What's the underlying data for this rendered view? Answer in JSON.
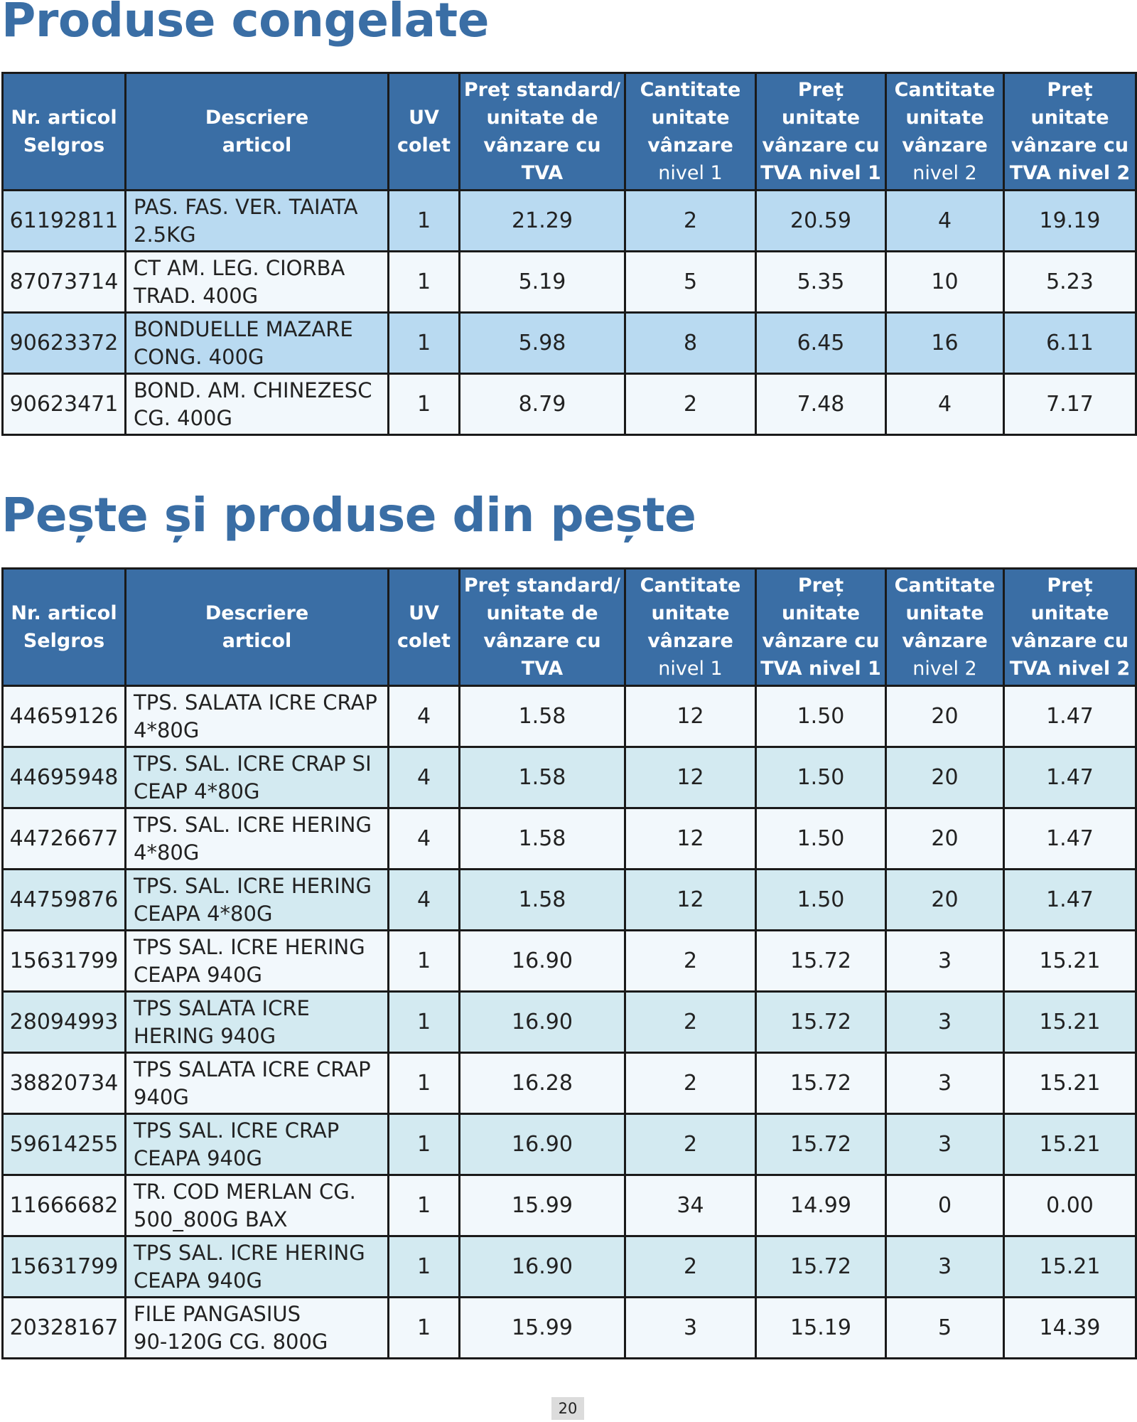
{
  "headers": [
    {
      "line1": "Nr. articol",
      "line2": "Selgros",
      "line3": "",
      "line4": ""
    },
    {
      "line1": "Descriere",
      "line2": "articol",
      "line3": "",
      "line4": ""
    },
    {
      "line1": "UV",
      "line2": "colet",
      "line3": "",
      "line4": ""
    },
    {
      "line1": "Preț standard/",
      "line2": "unitate de",
      "line3": "vânzare cu",
      "line4": "TVA"
    },
    {
      "line1": "Cantitate",
      "line2": "unitate",
      "line3": "vânzare",
      "line4": "nivel 1"
    },
    {
      "line1": "Preț",
      "line2": "unitate",
      "line3": "vânzare cu",
      "line4": "TVA nivel 1"
    },
    {
      "line1": "Cantitate",
      "line2": "unitate",
      "line3": "vânzare",
      "line4": "nivel 2"
    },
    {
      "line1": "Preț",
      "line2": "unitate",
      "line3": "vânzare cu",
      "line4": "TVA nivel 2"
    }
  ],
  "sections": [
    {
      "title": "Produse congelate",
      "rows": [
        {
          "article": "61192811",
          "desc1": "PAS. FAS. VER. TAIATA",
          "desc2": "2.5KG",
          "uv": "1",
          "price": "21.29",
          "qty1": "2",
          "price1": "20.59",
          "qty2": "4",
          "price2": "19.19"
        },
        {
          "article": "87073714",
          "desc1": "CT AM. LEG. CIORBA",
          "desc2": "TRAD. 400G",
          "uv": "1",
          "price": "5.19",
          "qty1": "5",
          "price1": "5.35",
          "qty2": "10",
          "price2": "5.23"
        },
        {
          "article": "90623372",
          "desc1": "BONDUELLE MAZARE",
          "desc2": "CONG. 400G",
          "uv": "1",
          "price": "5.98",
          "qty1": "8",
          "price1": "6.45",
          "qty2": "16",
          "price2": "6.11"
        },
        {
          "article": "90623471",
          "desc1": "BOND. AM. CHINEZESC",
          "desc2": "CG. 400G",
          "uv": "1",
          "price": "8.79",
          "qty1": "2",
          "price1": "7.48",
          "qty2": "4",
          "price2": "7.17"
        }
      ]
    },
    {
      "title": "Pește și produse din pește",
      "rows": [
        {
          "article": "44659126",
          "desc1": "TPS. SALATA ICRE CRAP",
          "desc2": "4*80G",
          "uv": "4",
          "price": "1.58",
          "qty1": "12",
          "price1": "1.50",
          "qty2": "20",
          "price2": "1.47"
        },
        {
          "article": "44695948",
          "desc1": "TPS. SAL. ICRE CRAP SI",
          "desc2": "CEAP 4*80G",
          "uv": "4",
          "price": "1.58",
          "qty1": "12",
          "price1": "1.50",
          "qty2": "20",
          "price2": "1.47"
        },
        {
          "article": "44726677",
          "desc1": "TPS. SAL. ICRE HERING",
          "desc2": "4*80G",
          "uv": "4",
          "price": "1.58",
          "qty1": "12",
          "price1": "1.50",
          "qty2": "20",
          "price2": "1.47"
        },
        {
          "article": "44759876",
          "desc1": "TPS. SAL. ICRE HERING",
          "desc2": "CEAPA 4*80G",
          "uv": "4",
          "price": "1.58",
          "qty1": "12",
          "price1": "1.50",
          "qty2": "20",
          "price2": "1.47"
        },
        {
          "article": "15631799",
          "desc1": "TPS SAL. ICRE HERING",
          "desc2": "CEAPA 940G",
          "uv": "1",
          "price": "16.90",
          "qty1": "2",
          "price1": "15.72",
          "qty2": "3",
          "price2": "15.21"
        },
        {
          "article": "28094993",
          "desc1": "TPS SALATA ICRE",
          "desc2": "HERING 940G",
          "uv": "1",
          "price": "16.90",
          "qty1": "2",
          "price1": "15.72",
          "qty2": "3",
          "price2": "15.21"
        },
        {
          "article": "38820734",
          "desc1": "TPS SALATA ICRE CRAP",
          "desc2": "940G",
          "uv": "1",
          "price": "16.28",
          "qty1": "2",
          "price1": "15.72",
          "qty2": "3",
          "price2": "15.21"
        },
        {
          "article": "59614255",
          "desc1": "TPS SAL. ICRE CRAP",
          "desc2": "CEAPA 940G",
          "uv": "1",
          "price": "16.90",
          "qty1": "2",
          "price1": "15.72",
          "qty2": "3",
          "price2": "15.21"
        },
        {
          "article": "11666682",
          "desc1": "TR. COD MERLAN CG.",
          "desc2": "500_800G BAX",
          "uv": "1",
          "price": "15.99",
          "qty1": "34",
          "price1": "14.99",
          "qty2": "0",
          "price2": "0.00"
        },
        {
          "article": "15631799",
          "desc1": "TPS SAL. ICRE HERING",
          "desc2": "CEAPA 940G",
          "uv": "1",
          "price": "16.90",
          "qty1": "2",
          "price1": "15.72",
          "qty2": "3",
          "price2": "15.21"
        },
        {
          "article": "20328167",
          "desc1": "FILE PANGASIUS",
          "desc2": "90-120G CG. 800G",
          "uv": "1",
          "price": "15.99",
          "qty1": "3",
          "price1": "15.19",
          "qty2": "5",
          "price2": "14.39"
        }
      ]
    }
  ],
  "page_number": "20"
}
